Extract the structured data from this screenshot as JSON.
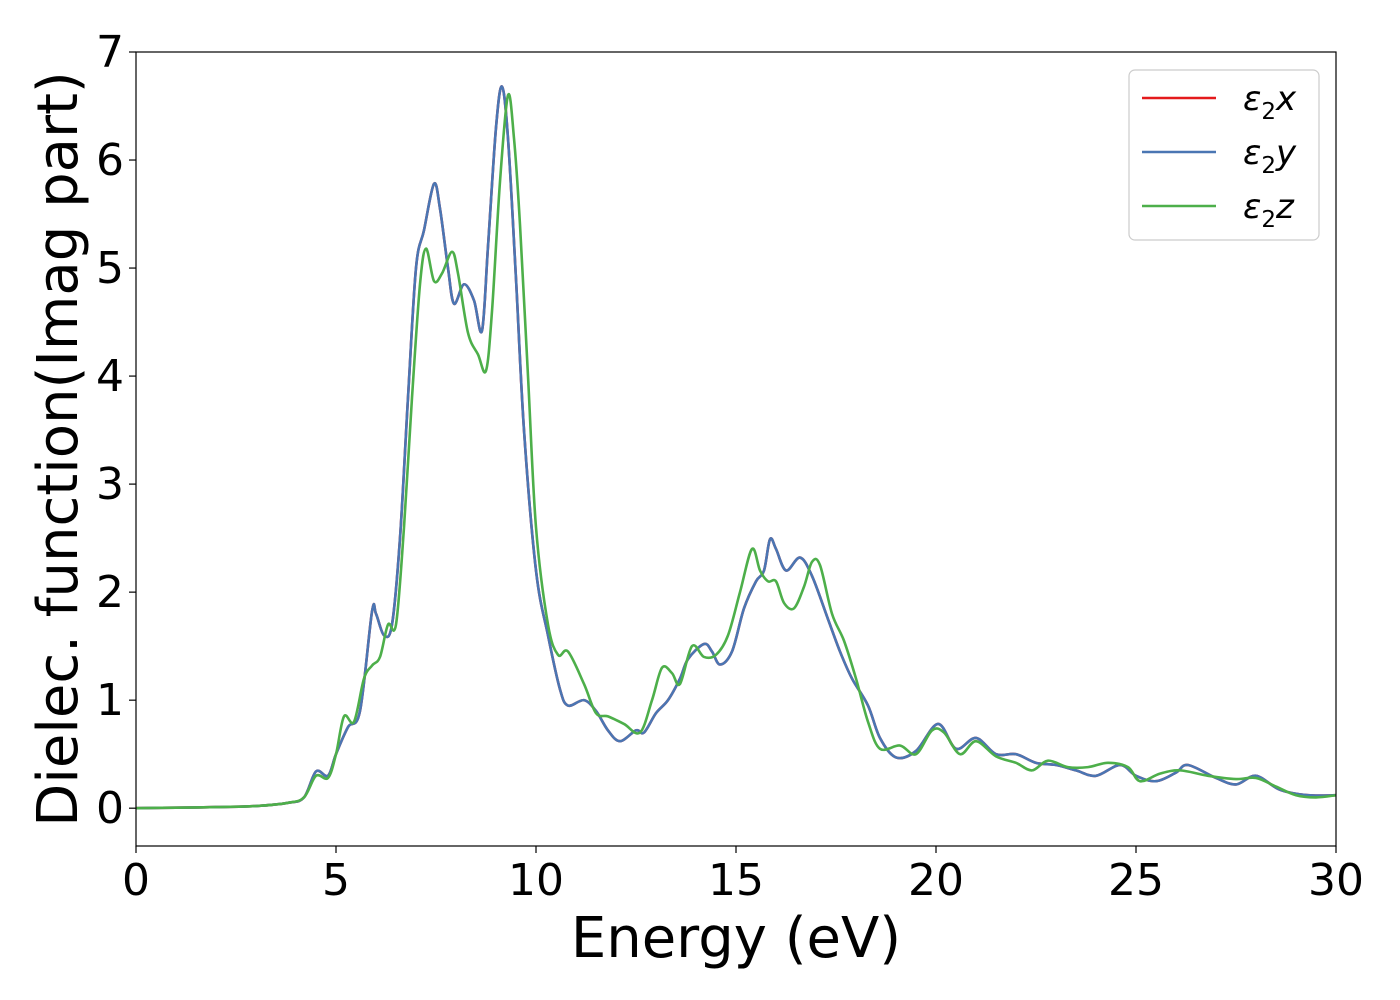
{
  "chart_data": {
    "type": "line",
    "title": "",
    "xlabel": "Energy (eV)",
    "ylabel": "Dielec. function(Imag part)",
    "xlim": [
      0,
      30
    ],
    "ylim": [
      -0.35,
      7
    ],
    "xticks": [
      0,
      5,
      10,
      15,
      20,
      25,
      30
    ],
    "yticks": [
      0,
      1,
      2,
      3,
      4,
      5,
      6,
      7
    ],
    "grid": false,
    "legend_position": "top-right",
    "series": [
      {
        "name": "ε2x",
        "legend_base": "ε",
        "legend_sub": "2",
        "legend_var": "x",
        "color": "#e41a1c",
        "points": [
          [
            0,
            0.0
          ],
          [
            1,
            0.005
          ],
          [
            2,
            0.01
          ],
          [
            3,
            0.02
          ],
          [
            3.8,
            0.05
          ],
          [
            4.2,
            0.1
          ],
          [
            4.5,
            0.34
          ],
          [
            4.8,
            0.3
          ],
          [
            5.0,
            0.5
          ],
          [
            5.3,
            0.75
          ],
          [
            5.6,
            0.9
          ],
          [
            5.9,
            1.82
          ],
          [
            6.0,
            1.8
          ],
          [
            6.2,
            1.6
          ],
          [
            6.4,
            1.7
          ],
          [
            6.6,
            2.5
          ],
          [
            6.8,
            3.8
          ],
          [
            7.0,
            5.0
          ],
          [
            7.2,
            5.35
          ],
          [
            7.45,
            5.78
          ],
          [
            7.6,
            5.55
          ],
          [
            7.8,
            5.0
          ],
          [
            7.95,
            4.67
          ],
          [
            8.2,
            4.85
          ],
          [
            8.45,
            4.7
          ],
          [
            8.65,
            4.42
          ],
          [
            8.8,
            5.2
          ],
          [
            9.0,
            6.3
          ],
          [
            9.15,
            6.68
          ],
          [
            9.3,
            6.2
          ],
          [
            9.5,
            4.9
          ],
          [
            9.7,
            3.5
          ],
          [
            10.0,
            2.2
          ],
          [
            10.3,
            1.6
          ],
          [
            10.6,
            1.1
          ],
          [
            10.8,
            0.95
          ],
          [
            11.2,
            1.0
          ],
          [
            11.5,
            0.9
          ],
          [
            11.8,
            0.72
          ],
          [
            12.1,
            0.62
          ],
          [
            12.5,
            0.72
          ],
          [
            12.7,
            0.7
          ],
          [
            13.0,
            0.88
          ],
          [
            13.3,
            1.0
          ],
          [
            13.6,
            1.2
          ],
          [
            13.8,
            1.38
          ],
          [
            14.2,
            1.52
          ],
          [
            14.4,
            1.45
          ],
          [
            14.6,
            1.33
          ],
          [
            14.9,
            1.45
          ],
          [
            15.2,
            1.85
          ],
          [
            15.5,
            2.1
          ],
          [
            15.7,
            2.2
          ],
          [
            15.85,
            2.49
          ],
          [
            16.0,
            2.4
          ],
          [
            16.25,
            2.2
          ],
          [
            16.6,
            2.32
          ],
          [
            16.9,
            2.15
          ],
          [
            17.3,
            1.75
          ],
          [
            17.6,
            1.45
          ],
          [
            17.9,
            1.2
          ],
          [
            18.3,
            0.95
          ],
          [
            18.6,
            0.65
          ],
          [
            19.0,
            0.47
          ],
          [
            19.5,
            0.53
          ],
          [
            20.05,
            0.78
          ],
          [
            20.5,
            0.55
          ],
          [
            21.0,
            0.65
          ],
          [
            21.5,
            0.5
          ],
          [
            22.0,
            0.5
          ],
          [
            22.5,
            0.42
          ],
          [
            23.0,
            0.4
          ],
          [
            23.5,
            0.35
          ],
          [
            24.0,
            0.3
          ],
          [
            24.6,
            0.4
          ],
          [
            25.0,
            0.3
          ],
          [
            25.5,
            0.25
          ],
          [
            26.0,
            0.33
          ],
          [
            26.3,
            0.4
          ],
          [
            27.0,
            0.28
          ],
          [
            27.5,
            0.22
          ],
          [
            28.0,
            0.3
          ],
          [
            28.6,
            0.17
          ],
          [
            29.3,
            0.12
          ],
          [
            30.0,
            0.12
          ]
        ]
      },
      {
        "name": "ε2y",
        "legend_base": "ε",
        "legend_sub": "2",
        "legend_var": "y",
        "color": "#4a76b3",
        "points": [
          [
            0,
            0.0
          ],
          [
            1,
            0.005
          ],
          [
            2,
            0.01
          ],
          [
            3,
            0.02
          ],
          [
            3.8,
            0.05
          ],
          [
            4.2,
            0.1
          ],
          [
            4.5,
            0.34
          ],
          [
            4.8,
            0.3
          ],
          [
            5.0,
            0.5
          ],
          [
            5.3,
            0.75
          ],
          [
            5.6,
            0.9
          ],
          [
            5.9,
            1.82
          ],
          [
            6.0,
            1.8
          ],
          [
            6.2,
            1.6
          ],
          [
            6.4,
            1.7
          ],
          [
            6.6,
            2.5
          ],
          [
            6.8,
            3.8
          ],
          [
            7.0,
            5.0
          ],
          [
            7.2,
            5.35
          ],
          [
            7.45,
            5.78
          ],
          [
            7.6,
            5.55
          ],
          [
            7.8,
            5.0
          ],
          [
            7.95,
            4.67
          ],
          [
            8.2,
            4.85
          ],
          [
            8.45,
            4.7
          ],
          [
            8.65,
            4.42
          ],
          [
            8.8,
            5.2
          ],
          [
            9.0,
            6.3
          ],
          [
            9.15,
            6.68
          ],
          [
            9.3,
            6.2
          ],
          [
            9.5,
            4.9
          ],
          [
            9.7,
            3.5
          ],
          [
            10.0,
            2.2
          ],
          [
            10.3,
            1.6
          ],
          [
            10.6,
            1.1
          ],
          [
            10.8,
            0.95
          ],
          [
            11.2,
            1.0
          ],
          [
            11.5,
            0.9
          ],
          [
            11.8,
            0.72
          ],
          [
            12.1,
            0.62
          ],
          [
            12.5,
            0.72
          ],
          [
            12.7,
            0.7
          ],
          [
            13.0,
            0.88
          ],
          [
            13.3,
            1.0
          ],
          [
            13.6,
            1.2
          ],
          [
            13.8,
            1.38
          ],
          [
            14.2,
            1.52
          ],
          [
            14.4,
            1.45
          ],
          [
            14.6,
            1.33
          ],
          [
            14.9,
            1.45
          ],
          [
            15.2,
            1.85
          ],
          [
            15.5,
            2.1
          ],
          [
            15.7,
            2.2
          ],
          [
            15.85,
            2.49
          ],
          [
            16.0,
            2.4
          ],
          [
            16.25,
            2.2
          ],
          [
            16.6,
            2.32
          ],
          [
            16.9,
            2.15
          ],
          [
            17.3,
            1.75
          ],
          [
            17.6,
            1.45
          ],
          [
            17.9,
            1.2
          ],
          [
            18.3,
            0.95
          ],
          [
            18.6,
            0.65
          ],
          [
            19.0,
            0.47
          ],
          [
            19.5,
            0.53
          ],
          [
            20.05,
            0.78
          ],
          [
            20.5,
            0.55
          ],
          [
            21.0,
            0.65
          ],
          [
            21.5,
            0.5
          ],
          [
            22.0,
            0.5
          ],
          [
            22.5,
            0.42
          ],
          [
            23.0,
            0.4
          ],
          [
            23.5,
            0.35
          ],
          [
            24.0,
            0.3
          ],
          [
            24.6,
            0.4
          ],
          [
            25.0,
            0.3
          ],
          [
            25.5,
            0.25
          ],
          [
            26.0,
            0.33
          ],
          [
            26.3,
            0.4
          ],
          [
            27.0,
            0.28
          ],
          [
            27.5,
            0.22
          ],
          [
            28.0,
            0.3
          ],
          [
            28.6,
            0.17
          ],
          [
            29.3,
            0.12
          ],
          [
            30.0,
            0.12
          ]
        ]
      },
      {
        "name": "ε2z",
        "legend_base": "ε",
        "legend_sub": "2",
        "legend_var": "z",
        "color": "#4daf4a",
        "points": [
          [
            0,
            0.0
          ],
          [
            1,
            0.005
          ],
          [
            2,
            0.01
          ],
          [
            3,
            0.02
          ],
          [
            3.8,
            0.05
          ],
          [
            4.2,
            0.1
          ],
          [
            4.5,
            0.3
          ],
          [
            4.8,
            0.28
          ],
          [
            5.0,
            0.5
          ],
          [
            5.2,
            0.85
          ],
          [
            5.45,
            0.8
          ],
          [
            5.7,
            1.2
          ],
          [
            5.9,
            1.32
          ],
          [
            6.1,
            1.4
          ],
          [
            6.3,
            1.7
          ],
          [
            6.5,
            1.7
          ],
          [
            6.7,
            2.6
          ],
          [
            6.9,
            3.8
          ],
          [
            7.1,
            4.85
          ],
          [
            7.25,
            5.18
          ],
          [
            7.45,
            4.88
          ],
          [
            7.65,
            4.95
          ],
          [
            7.9,
            5.15
          ],
          [
            8.05,
            4.95
          ],
          [
            8.3,
            4.4
          ],
          [
            8.55,
            4.2
          ],
          [
            8.75,
            4.05
          ],
          [
            8.9,
            4.6
          ],
          [
            9.1,
            5.8
          ],
          [
            9.3,
            6.6
          ],
          [
            9.45,
            6.2
          ],
          [
            9.6,
            5.4
          ],
          [
            9.8,
            4.0
          ],
          [
            10.0,
            2.6
          ],
          [
            10.3,
            1.7
          ],
          [
            10.55,
            1.42
          ],
          [
            10.8,
            1.45
          ],
          [
            11.2,
            1.15
          ],
          [
            11.5,
            0.88
          ],
          [
            11.8,
            0.85
          ],
          [
            12.2,
            0.78
          ],
          [
            12.6,
            0.7
          ],
          [
            12.9,
            1.0
          ],
          [
            13.15,
            1.3
          ],
          [
            13.4,
            1.25
          ],
          [
            13.6,
            1.15
          ],
          [
            13.9,
            1.5
          ],
          [
            14.2,
            1.4
          ],
          [
            14.5,
            1.42
          ],
          [
            14.8,
            1.6
          ],
          [
            15.1,
            2.0
          ],
          [
            15.4,
            2.4
          ],
          [
            15.6,
            2.2
          ],
          [
            15.8,
            2.1
          ],
          [
            16.0,
            2.1
          ],
          [
            16.2,
            1.9
          ],
          [
            16.45,
            1.85
          ],
          [
            16.7,
            2.05
          ],
          [
            16.9,
            2.28
          ],
          [
            17.1,
            2.25
          ],
          [
            17.4,
            1.8
          ],
          [
            17.7,
            1.55
          ],
          [
            18.0,
            1.2
          ],
          [
            18.3,
            0.8
          ],
          [
            18.6,
            0.55
          ],
          [
            19.1,
            0.58
          ],
          [
            19.5,
            0.5
          ],
          [
            19.9,
            0.72
          ],
          [
            20.2,
            0.7
          ],
          [
            20.6,
            0.5
          ],
          [
            21.0,
            0.62
          ],
          [
            21.5,
            0.48
          ],
          [
            22.0,
            0.42
          ],
          [
            22.4,
            0.35
          ],
          [
            22.8,
            0.44
          ],
          [
            23.3,
            0.38
          ],
          [
            23.8,
            0.38
          ],
          [
            24.3,
            0.42
          ],
          [
            24.8,
            0.38
          ],
          [
            25.1,
            0.25
          ],
          [
            25.6,
            0.32
          ],
          [
            26.1,
            0.35
          ],
          [
            26.8,
            0.3
          ],
          [
            27.5,
            0.27
          ],
          [
            28.0,
            0.28
          ],
          [
            28.5,
            0.2
          ],
          [
            29.0,
            0.12
          ],
          [
            29.5,
            0.1
          ],
          [
            30.0,
            0.12
          ]
        ]
      }
    ]
  }
}
